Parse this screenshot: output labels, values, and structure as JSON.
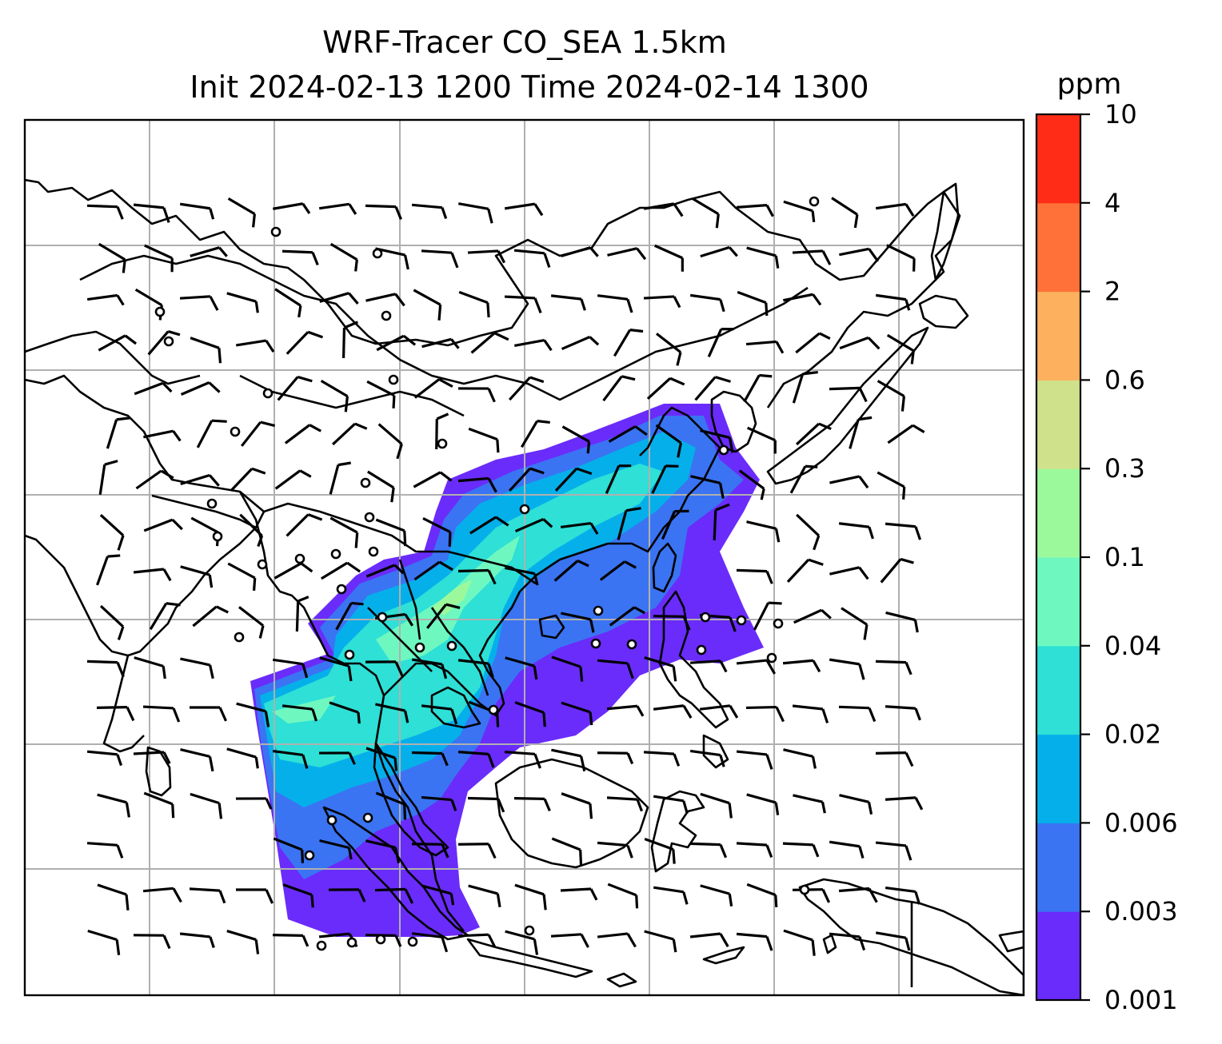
{
  "title": {
    "line1": "WRF-Tracer CO_SEA 1.5km",
    "line2": "Init 2024-02-13 1200 Time 2024-02-14 1300"
  },
  "colorbar": {
    "unit": "ppm",
    "levels": [
      "0.001",
      "0.003",
      "0.006",
      "0.02",
      "0.04",
      "0.1",
      "0.3",
      "0.6",
      "2",
      "4",
      "10"
    ],
    "colors": [
      "#6a2cfa",
      "#3a74f3",
      "#05b0ea",
      "#2ee0d6",
      "#6ef8c0",
      "#9cf99b",
      "#cfe18a",
      "#fdb05e",
      "#ff7139",
      "#ff2d17"
    ]
  },
  "map": {
    "field": "CO_SEA tracer concentration with wind barbs",
    "colors": {
      "coast": "#000000",
      "grid": "#b0b0b0",
      "barb": "#000000"
    }
  }
}
